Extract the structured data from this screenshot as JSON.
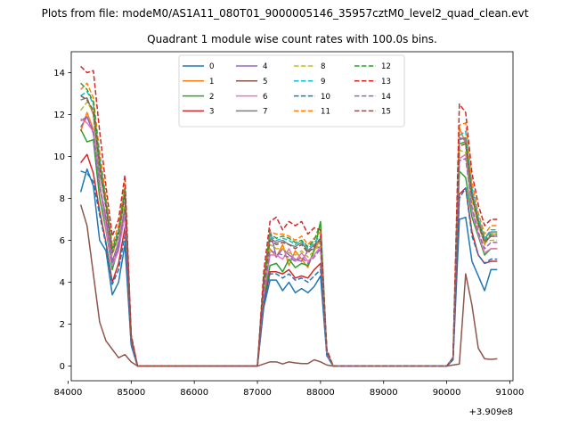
{
  "suptitle": "Plots from file: modeM0/AS1A11_080T01_9000005146_35957cztM0_level2_quad_clean.evt",
  "chart_data": {
    "type": "line",
    "title": "Quadrant 1 module wise count rates with 100.0s bins.",
    "xlabel": "",
    "ylabel": "",
    "x_offset_label": "+3.909e8",
    "xlim": [
      84050,
      91050
    ],
    "ylim": [
      -0.7,
      15.0
    ],
    "x_ticks": [
      84000,
      85000,
      86000,
      87000,
      88000,
      89000,
      90000,
      91000
    ],
    "x_tick_labels": [
      "84000",
      "85000",
      "86000",
      "87000",
      "88000",
      "89000",
      "90000",
      "91000"
    ],
    "y_ticks": [
      0,
      2,
      4,
      6,
      8,
      10,
      12,
      14
    ],
    "y_tick_labels": [
      "0",
      "2",
      "4",
      "6",
      "8",
      "10",
      "12",
      "14"
    ],
    "grid": false,
    "legend": {
      "placement": "top-center",
      "columns": 4
    },
    "x": [
      84200,
      84300,
      84400,
      84500,
      84600,
      84700,
      84800,
      84900,
      85000,
      85100,
      85200,
      85300,
      85400,
      85500,
      85600,
      85700,
      85800,
      85900,
      86000,
      86100,
      86200,
      86300,
      86400,
      86500,
      86600,
      86700,
      86800,
      86900,
      87000,
      87100,
      87200,
      87300,
      87400,
      87500,
      87600,
      87700,
      87800,
      87900,
      88000,
      88100,
      88200,
      88300,
      88400,
      88500,
      88600,
      88700,
      88800,
      88900,
      89000,
      89100,
      89200,
      89300,
      89400,
      89500,
      89600,
      89700,
      89800,
      89900,
      90000,
      90100,
      90200,
      90300,
      90400,
      90500,
      90600,
      90700,
      90800
    ],
    "series": [
      {
        "name": "0",
        "color": "#1f77b4",
        "dashed": false,
        "values": [
          8.3,
          9.4,
          8.6,
          6.0,
          5.5,
          3.4,
          4.0,
          5.8,
          1.0,
          0,
          0,
          0,
          0,
          0,
          0,
          0,
          0,
          0,
          0,
          0,
          0,
          0,
          0,
          0,
          0,
          0,
          0,
          0,
          0,
          2.8,
          4.1,
          4.1,
          3.6,
          4.0,
          3.5,
          3.7,
          3.5,
          3.8,
          4.3,
          0.5,
          0,
          0,
          0,
          0,
          0,
          0,
          0,
          0,
          0,
          0,
          0,
          0,
          0,
          0,
          0,
          0,
          0,
          0,
          0,
          0.3,
          7.0,
          7.1,
          5.0,
          4.3,
          3.6,
          4.6,
          4.6
        ]
      },
      {
        "name": "1",
        "color": "#ff7f0e",
        "dashed": false,
        "values": [
          11.2,
          12.1,
          11.3,
          8.5,
          6.9,
          4.8,
          5.6,
          7.4,
          1.3,
          0,
          0,
          0,
          0,
          0,
          0,
          0,
          0,
          0,
          0,
          0,
          0,
          0,
          0,
          0,
          0,
          0,
          0,
          0,
          0,
          3.5,
          5.6,
          5.2,
          5.8,
          4.8,
          5.5,
          5.1,
          4.7,
          5.6,
          6.0,
          0.7,
          0,
          0,
          0,
          0,
          0,
          0,
          0,
          0,
          0,
          0,
          0,
          0,
          0,
          0,
          0,
          0,
          0,
          0,
          0,
          0.4,
          11.4,
          10.6,
          8.2,
          6.8,
          5.8,
          6.3,
          6.3
        ]
      },
      {
        "name": "2",
        "color": "#2ca02c",
        "dashed": false,
        "values": [
          11.3,
          10.7,
          10.8,
          8.0,
          6.5,
          4.6,
          5.7,
          7.6,
          1.2,
          0,
          0,
          0,
          0,
          0,
          0,
          0,
          0,
          0,
          0,
          0,
          0,
          0,
          0,
          0,
          0,
          0,
          0,
          0,
          0,
          3.3,
          4.8,
          4.9,
          4.5,
          5.1,
          4.7,
          4.9,
          4.8,
          5.5,
          6.9,
          0.6,
          0,
          0,
          0,
          0,
          0,
          0,
          0,
          0,
          0,
          0,
          0,
          0,
          0,
          0,
          0,
          0,
          0,
          0,
          0,
          0.4,
          9.3,
          9.0,
          7.1,
          6.2,
          5.3,
          5.6,
          5.6
        ]
      },
      {
        "name": "3",
        "color": "#d62728",
        "dashed": false,
        "values": [
          9.7,
          10.1,
          9.2,
          7.4,
          5.9,
          4.0,
          4.9,
          6.6,
          1.1,
          0,
          0,
          0,
          0,
          0,
          0,
          0,
          0,
          0,
          0,
          0,
          0,
          0,
          0,
          0,
          0,
          0,
          0,
          0,
          0,
          3.0,
          4.5,
          4.5,
          4.4,
          4.6,
          4.2,
          4.3,
          4.2,
          4.6,
          4.9,
          0.6,
          0,
          0,
          0,
          0,
          0,
          0,
          0,
          0,
          0,
          0,
          0,
          0,
          0,
          0,
          0,
          0,
          0,
          0,
          0,
          0.3,
          8.2,
          8.5,
          6.4,
          5.3,
          4.9,
          5.0,
          5.0
        ]
      },
      {
        "name": "4",
        "color": "#9467bd",
        "dashed": false,
        "values": [
          11.7,
          11.9,
          11.1,
          8.6,
          7.1,
          5.0,
          5.9,
          7.4,
          1.3,
          0,
          0,
          0,
          0,
          0,
          0,
          0,
          0,
          0,
          0,
          0,
          0,
          0,
          0,
          0,
          0,
          0,
          0,
          0,
          0,
          3.6,
          6.5,
          5.2,
          5.6,
          5.3,
          5.1,
          5.0,
          5.5,
          5.6,
          5.7,
          0.7,
          0,
          0,
          0,
          0,
          0,
          0,
          0,
          0,
          0,
          0,
          0,
          0,
          0,
          0,
          0,
          0,
          0,
          0,
          0,
          0.4,
          10.9,
          10.8,
          8.4,
          6.7,
          5.9,
          6.2,
          6.2
        ]
      },
      {
        "name": "5",
        "color": "#8c564b",
        "dashed": false,
        "values": [
          7.7,
          6.7,
          4.4,
          2.1,
          1.2,
          0.8,
          0.4,
          0.55,
          0.2,
          0,
          0,
          0,
          0,
          0,
          0,
          0,
          0,
          0,
          0,
          0,
          0,
          0,
          0,
          0,
          0,
          0,
          0,
          0,
          0,
          0.1,
          0.2,
          0.2,
          0.1,
          0.2,
          0.15,
          0.12,
          0.12,
          0.3,
          0.2,
          0.05,
          0,
          0,
          0,
          0,
          0,
          0,
          0,
          0,
          0,
          0,
          0,
          0,
          0,
          0,
          0,
          0,
          0,
          0,
          0,
          0.05,
          0.1,
          4.4,
          2.9,
          0.85,
          0.35,
          0.32,
          0.35
        ]
      },
      {
        "name": "6",
        "color": "#e377c2",
        "dashed": false,
        "values": [
          11.8,
          11.6,
          11.2,
          8.7,
          6.6,
          4.8,
          5.5,
          7.2,
          1.2,
          0,
          0,
          0,
          0,
          0,
          0,
          0,
          0,
          0,
          0,
          0,
          0,
          0,
          0,
          0,
          0,
          0,
          0,
          0,
          0,
          3.4,
          5.3,
          5.3,
          5.1,
          5.6,
          5.0,
          5.4,
          5.0,
          5.3,
          5.7,
          0.6,
          0,
          0,
          0,
          0,
          0,
          0,
          0,
          0,
          0,
          0,
          0,
          0,
          0,
          0,
          0,
          0,
          0,
          0,
          0,
          0.4,
          9.9,
          10.1,
          7.4,
          6.3,
          5.4,
          5.6,
          5.6
        ]
      },
      {
        "name": "7",
        "color": "#7f7f7f",
        "dashed": false,
        "values": [
          12.7,
          12.8,
          12.0,
          9.2,
          7.7,
          5.4,
          6.2,
          8.1,
          1.4,
          0,
          0,
          0,
          0,
          0,
          0,
          0,
          0,
          0,
          0,
          0,
          0,
          0,
          0,
          0,
          0,
          0,
          0,
          0,
          0,
          4.0,
          6.1,
          5.9,
          6.0,
          5.8,
          5.7,
          5.9,
          5.5,
          5.8,
          6.0,
          0.7,
          0,
          0,
          0,
          0,
          0,
          0,
          0,
          0,
          0,
          0,
          0,
          0,
          0,
          0,
          0,
          0,
          0,
          0,
          0,
          0.4,
          10.8,
          10.9,
          8.3,
          7.0,
          6.1,
          6.4,
          6.4
        ]
      },
      {
        "name": "8",
        "color": "#bcbd22",
        "dashed": true,
        "values": [
          12.2,
          12.6,
          12.1,
          9.4,
          7.5,
          5.3,
          6.1,
          8.0,
          1.3,
          0,
          0,
          0,
          0,
          0,
          0,
          0,
          0,
          0,
          0,
          0,
          0,
          0,
          0,
          0,
          0,
          0,
          0,
          0,
          0,
          3.8,
          5.8,
          5.6,
          5.6,
          5.4,
          5.3,
          5.5,
          5.2,
          5.5,
          5.9,
          0.7,
          0,
          0,
          0,
          0,
          0,
          0,
          0,
          0,
          0,
          0,
          0,
          0,
          0,
          0,
          0,
          0,
          0,
          0,
          0,
          0.4,
          10.3,
          10.2,
          7.9,
          6.7,
          5.9,
          6.0,
          6.0
        ]
      },
      {
        "name": "9",
        "color": "#17becf",
        "dashed": true,
        "values": [
          12.9,
          13.1,
          12.5,
          9.9,
          7.9,
          5.6,
          6.4,
          8.4,
          1.4,
          0,
          0,
          0,
          0,
          0,
          0,
          0,
          0,
          0,
          0,
          0,
          0,
          0,
          0,
          0,
          0,
          0,
          0,
          0,
          0,
          4.0,
          6.2,
          6.0,
          6.1,
          6.0,
          5.8,
          6.0,
          5.6,
          5.9,
          6.2,
          0.7,
          0,
          0,
          0,
          0,
          0,
          0,
          0,
          0,
          0,
          0,
          0,
          0,
          0,
          0,
          0,
          0,
          0,
          0,
          0,
          0.4,
          11.0,
          11.2,
          8.5,
          7.1,
          6.1,
          6.5,
          6.5
        ]
      },
      {
        "name": "10",
        "color": "#1f77b4",
        "dashed": true,
        "values": [
          9.3,
          9.2,
          8.8,
          7.2,
          5.8,
          3.9,
          4.6,
          6.2,
          1.0,
          0,
          0,
          0,
          0,
          0,
          0,
          0,
          0,
          0,
          0,
          0,
          0,
          0,
          0,
          0,
          0,
          0,
          0,
          0,
          0,
          3.0,
          4.4,
          4.4,
          4.2,
          4.4,
          4.1,
          4.2,
          4.0,
          4.3,
          4.6,
          0.5,
          0,
          0,
          0,
          0,
          0,
          0,
          0,
          0,
          0,
          0,
          0,
          0,
          0,
          0,
          0,
          0,
          0,
          0,
          0,
          0.3,
          8.0,
          8.5,
          6.2,
          5.3,
          4.9,
          5.1,
          5.1
        ]
      },
      {
        "name": "11",
        "color": "#ff7f0e",
        "dashed": true,
        "values": [
          13.2,
          13.5,
          12.8,
          10.2,
          8.1,
          5.8,
          6.7,
          8.7,
          1.4,
          0,
          0,
          0,
          0,
          0,
          0,
          0,
          0,
          0,
          0,
          0,
          0,
          0,
          0,
          0,
          0,
          0,
          0,
          0,
          0,
          4.2,
          6.4,
          6.3,
          6.3,
          6.2,
          6.0,
          6.2,
          5.8,
          6.1,
          6.4,
          0.7,
          0,
          0,
          0,
          0,
          0,
          0,
          0,
          0,
          0,
          0,
          0,
          0,
          0,
          0,
          0,
          0,
          0,
          0,
          0,
          0.4,
          11.5,
          11.6,
          8.8,
          7.3,
          6.3,
          6.7,
          6.7
        ]
      },
      {
        "name": "12",
        "color": "#2ca02c",
        "dashed": true,
        "values": [
          13.5,
          13.2,
          12.6,
          9.8,
          7.8,
          5.6,
          6.5,
          8.5,
          1.4,
          0,
          0,
          0,
          0,
          0,
          0,
          0,
          0,
          0,
          0,
          0,
          0,
          0,
          0,
          0,
          0,
          0,
          0,
          0,
          0,
          4.1,
          6.3,
          6.1,
          6.2,
          6.1,
          5.9,
          6.0,
          5.7,
          6.0,
          6.8,
          0.7,
          0,
          0,
          0,
          0,
          0,
          0,
          0,
          0,
          0,
          0,
          0,
          0,
          0,
          0,
          0,
          0,
          0,
          0,
          0,
          0.4,
          10.6,
          10.7,
          8.2,
          6.9,
          6.0,
          6.3,
          6.3
        ]
      },
      {
        "name": "13",
        "color": "#d62728",
        "dashed": true,
        "values": [
          14.3,
          14.0,
          14.1,
          11.2,
          8.6,
          6.2,
          7.0,
          9.1,
          1.5,
          0,
          0,
          0,
          0,
          0,
          0,
          0,
          0,
          0,
          0,
          0,
          0,
          0,
          0,
          0,
          0,
          0,
          0,
          0,
          0,
          4.5,
          6.9,
          7.1,
          6.5,
          6.9,
          6.7,
          6.9,
          6.3,
          6.6,
          6.5,
          0.8,
          0,
          0,
          0,
          0,
          0,
          0,
          0,
          0,
          0,
          0,
          0,
          0,
          0,
          0,
          0,
          0,
          0,
          0,
          0,
          0.4,
          12.5,
          12.1,
          9.2,
          7.7,
          6.7,
          7.0,
          7.0
        ]
      },
      {
        "name": "14",
        "color": "#9467bd",
        "dashed": true,
        "values": [
          11.4,
          11.9,
          11.2,
          8.7,
          7.0,
          4.9,
          5.7,
          7.5,
          1.2,
          0,
          0,
          0,
          0,
          0,
          0,
          0,
          0,
          0,
          0,
          0,
          0,
          0,
          0,
          0,
          0,
          0,
          0,
          0,
          0,
          3.6,
          5.5,
          5.4,
          5.3,
          5.2,
          5.0,
          5.2,
          4.9,
          5.2,
          5.6,
          0.6,
          0,
          0,
          0,
          0,
          0,
          0,
          0,
          0,
          0,
          0,
          0,
          0,
          0,
          0,
          0,
          0,
          0,
          0,
          0,
          0.4,
          9.8,
          9.9,
          7.6,
          6.4,
          5.6,
          5.9,
          5.9
        ]
      },
      {
        "name": "15",
        "color": "#8c564b",
        "dashed": true,
        "values": [
          12.9,
          12.7,
          12.2,
          9.5,
          7.6,
          5.4,
          6.3,
          8.2,
          1.3,
          0,
          0,
          0,
          0,
          0,
          0,
          0,
          0,
          0,
          0,
          0,
          0,
          0,
          0,
          0,
          0,
          0,
          0,
          0,
          0,
          3.9,
          6.0,
          5.8,
          5.9,
          5.8,
          5.6,
          5.8,
          5.4,
          5.7,
          6.1,
          0.7,
          0,
          0,
          0,
          0,
          0,
          0,
          0,
          0,
          0,
          0,
          0,
          0,
          0,
          0,
          0,
          0,
          0,
          0,
          0,
          0.4,
          10.5,
          10.6,
          8.1,
          6.8,
          5.9,
          6.2,
          6.2
        ]
      }
    ]
  }
}
